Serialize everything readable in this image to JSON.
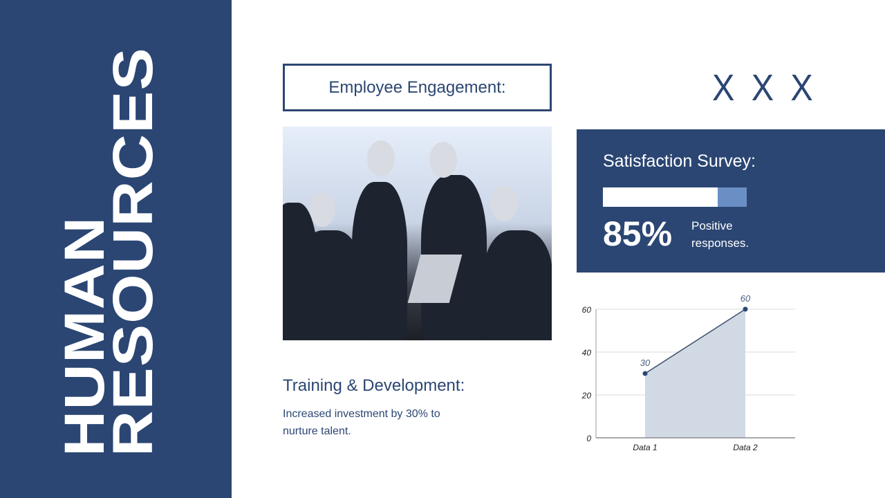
{
  "sidebar": {
    "title_line1": "HUMAN",
    "title_line2": "RESOURCES"
  },
  "engagement": {
    "title": "Employee Engagement:"
  },
  "decoration": {
    "text": "X X X"
  },
  "photo": {
    "alt": "Business team meeting"
  },
  "survey": {
    "title": "Satisfaction Survey:",
    "percent_label": "85%",
    "progress": 85,
    "caption": "Positive responses."
  },
  "training": {
    "title": "Training & Development:",
    "text": "Increased investment by 30% to nurture talent."
  },
  "colors": {
    "primary": "#2b4673",
    "accent": "#6a8fc5",
    "area": "#d1d9e4"
  },
  "chart_data": {
    "type": "area",
    "categories": [
      "Data 1",
      "Data 2"
    ],
    "values": [
      30,
      60
    ],
    "data_labels": [
      "30",
      "60"
    ],
    "ylim": [
      0,
      60
    ],
    "yticks": [
      0,
      20,
      40,
      60
    ],
    "grid": true
  }
}
